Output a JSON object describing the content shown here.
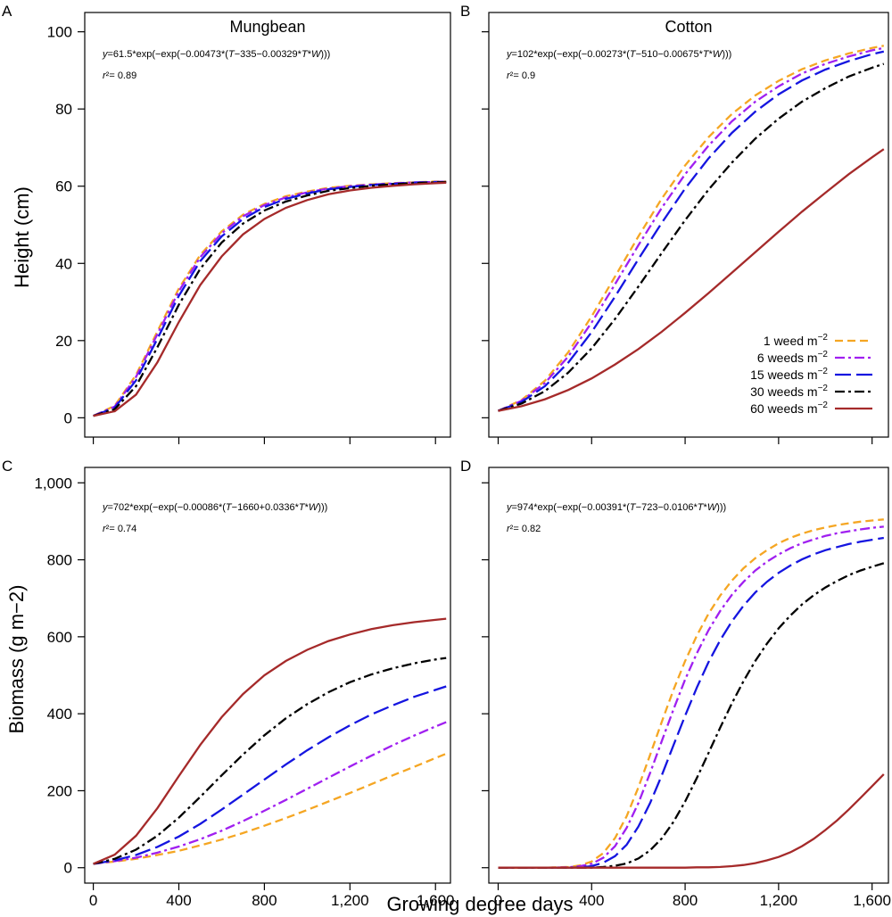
{
  "figure": {
    "x_axis_title": "Growing degree days",
    "y_axis_titles": {
      "height": "Height (cm)",
      "biomass": "Biomass  (g m−2)"
    }
  },
  "styles": {
    "1 weed m−2": {
      "color": "#F5A623",
      "dash": "9,5"
    },
    "6 weeds m−2": {
      "color": "#A020F0",
      "dash": "11,4,3,4"
    },
    "15 weeds m−2": {
      "color": "#1515E0",
      "dash": "18,6"
    },
    "30 weeds m−2": {
      "color": "#000000",
      "dash": "11,4,3,4"
    },
    "60 weeds m−2": {
      "color": "#A52A2A",
      "dash": ""
    }
  },
  "legend": {
    "panel": "B",
    "entries": [
      "1 weed m−2",
      "6 weeds m−2",
      "15 weeds m−2",
      "30 weeds m−2",
      "60 weeds m−2"
    ]
  },
  "chart_data": [
    {
      "type": "line",
      "panel": "A",
      "title": "Mungbean",
      "equation": "y=61.5*exp(−exp(−0.00473*(T−335−0.00329*T*W)))",
      "r2": "r²= 0.89",
      "ylabel": "Height (cm)",
      "xlim": [
        -40,
        1670
      ],
      "ylim": [
        -5,
        105
      ],
      "xticks": [
        0,
        400,
        800,
        1200,
        1600
      ],
      "xtick_labels": [
        "0",
        "400",
        "800",
        "1,200",
        "1,600"
      ],
      "yticks": [
        0,
        20,
        40,
        60,
        80,
        100
      ],
      "ytick_labels": [
        "0",
        "20",
        "40",
        "60",
        "80",
        "100"
      ],
      "x": [
        0,
        100,
        200,
        300,
        400,
        500,
        600,
        700,
        800,
        900,
        1000,
        1100,
        1200,
        1300,
        1400,
        1500,
        1600,
        1650
      ],
      "series": [
        {
          "name": "1 weed m−2",
          "values": [
            0.5,
            3.1,
            11.1,
            22.4,
            33.5,
            42.2,
            48.3,
            52.6,
            55.4,
            57.4,
            58.6,
            59.6,
            60.1,
            60.5,
            60.8,
            61.0,
            61.2,
            61.2
          ]
        },
        {
          "name": "6 weeds m−2",
          "values": [
            0.5,
            2.9,
            10.6,
            21.7,
            32.8,
            41.6,
            47.8,
            52.2,
            55.1,
            57.1,
            58.4,
            59.4,
            60.0,
            60.4,
            60.7,
            61.0,
            61.1,
            61.2
          ]
        },
        {
          "name": "15 weeds m−2",
          "values": [
            0.5,
            2.6,
            9.7,
            20.5,
            31.6,
            40.6,
            47.0,
            51.5,
            54.6,
            56.7,
            58.1,
            59.2,
            59.8,
            60.3,
            60.6,
            60.9,
            61.1,
            61.1
          ]
        },
        {
          "name": "30 weeds m−2",
          "values": [
            0.5,
            2.2,
            8.2,
            18.3,
            29.3,
            38.6,
            45.4,
            50.3,
            53.7,
            56.0,
            57.6,
            58.8,
            59.5,
            60.1,
            60.5,
            60.8,
            61.0,
            61.1
          ]
        },
        {
          "name": "60 weeds m−2",
          "values": [
            0.5,
            1.7,
            6.0,
            14.4,
            24.8,
            34.4,
            41.8,
            47.5,
            51.5,
            54.4,
            56.4,
            57.9,
            58.9,
            59.6,
            60.1,
            60.5,
            60.8,
            60.9
          ]
        }
      ]
    },
    {
      "type": "line",
      "panel": "B",
      "title": "Cotton",
      "equation": "y=102*exp(−exp(−0.00273*(T−510−0.00675*T*W)))",
      "r2": "r²= 0.9",
      "xlim": [
        -40,
        1670
      ],
      "ylim": [
        -5,
        105
      ],
      "xticks": [
        0,
        400,
        800,
        1200,
        1600
      ],
      "xtick_labels": [
        "0",
        "400",
        "800",
        "1,200",
        "1,600"
      ],
      "yticks": [
        0,
        20,
        40,
        60,
        80,
        100
      ],
      "x": [
        0,
        100,
        200,
        300,
        400,
        500,
        600,
        700,
        800,
        900,
        1000,
        1100,
        1200,
        1300,
        1400,
        1500,
        1600,
        1650
      ],
      "series": [
        {
          "name": "1 weed m−2",
          "values": [
            1.8,
            4.6,
            9.6,
            17.0,
            26.3,
            36.6,
            47.0,
            56.8,
            65.4,
            72.7,
            78.7,
            83.5,
            87.3,
            90.3,
            92.6,
            94.4,
            95.8,
            96.4
          ]
        },
        {
          "name": "6 weeds m−2",
          "values": [
            1.8,
            4.4,
            9.0,
            15.9,
            24.7,
            34.6,
            44.7,
            54.4,
            63.1,
            70.5,
            76.8,
            81.9,
            85.9,
            89.2,
            91.7,
            93.6,
            95.2,
            95.8
          ]
        },
        {
          "name": "15 weeds m−2",
          "values": [
            1.8,
            4.1,
            8.2,
            14.3,
            22.2,
            31.4,
            41.1,
            50.5,
            59.4,
            67.2,
            73.8,
            79.3,
            83.8,
            87.4,
            90.2,
            92.4,
            94.2,
            94.9
          ]
        },
        {
          "name": "30 weeds m−2",
          "values": [
            1.8,
            3.7,
            6.9,
            11.7,
            18.0,
            25.6,
            34.0,
            42.7,
            51.2,
            59.1,
            66.1,
            72.3,
            77.5,
            81.9,
            85.4,
            88.4,
            90.7,
            91.7
          ]
        },
        {
          "name": "60 weeds m−2",
          "values": [
            1.8,
            3.0,
            4.8,
            7.2,
            10.2,
            13.8,
            17.8,
            22.3,
            27.2,
            32.3,
            37.6,
            42.9,
            48.2,
            53.4,
            58.3,
            63.1,
            67.5,
            69.6
          ]
        }
      ]
    },
    {
      "type": "line",
      "panel": "C",
      "equation": "y=702*exp(−exp(−0.00086*(T−1660+0.0336*T*W)))",
      "r2": "r²= 0.74",
      "ylabel": "Biomass  (g m−2)",
      "xlim": [
        -40,
        1670
      ],
      "ylim": [
        -40,
        1040
      ],
      "xticks": [
        0,
        400,
        800,
        1200,
        1600
      ],
      "xtick_labels": [
        "0",
        "400",
        "800",
        "1,200",
        "1,600"
      ],
      "yticks": [
        0,
        200,
        400,
        600,
        800,
        1000
      ],
      "ytick_labels": [
        "0",
        "200",
        "400",
        "600",
        "800",
        "1,000"
      ],
      "x": [
        0,
        100,
        200,
        300,
        400,
        500,
        600,
        700,
        800,
        900,
        1000,
        1100,
        1200,
        1300,
        1400,
        1500,
        1600,
        1650
      ],
      "series": [
        {
          "name": "1 weed m−2",
          "values": [
            10,
            16,
            23,
            33,
            44,
            58,
            73,
            90,
            109,
            129,
            150,
            172,
            194,
            217,
            240,
            262,
            285,
            296
          ]
        },
        {
          "name": "6 weeds m−2",
          "values": [
            10,
            17,
            26,
            39,
            55,
            74,
            96,
            121,
            148,
            176,
            205,
            234,
            263,
            291,
            318,
            343,
            367,
            378
          ]
        },
        {
          "name": "15 weeds m−2",
          "values": [
            10,
            19,
            33,
            54,
            81,
            114,
            151,
            190,
            229,
            268,
            305,
            339,
            370,
            398,
            422,
            444,
            462,
            471
          ]
        },
        {
          "name": "30 weeds m−2",
          "values": [
            10,
            23,
            47,
            83,
            130,
            184,
            240,
            294,
            344,
            388,
            425,
            456,
            482,
            502,
            518,
            531,
            541,
            545
          ]
        },
        {
          "name": "60 weeds m−2",
          "values": [
            10,
            34,
            83,
            155,
            238,
            319,
            391,
            451,
            500,
            537,
            566,
            589,
            606,
            620,
            630,
            638,
            644,
            647
          ]
        }
      ]
    },
    {
      "type": "line",
      "panel": "D",
      "equation": "y=974*exp(−exp(−0.00391*(T−723−0.0106*T*W)))",
      "r2": "r²= 0.82",
      "xlim": [
        -40,
        1670
      ],
      "ylim": [
        -40,
        1040
      ],
      "xticks": [
        0,
        400,
        800,
        1200,
        1600
      ],
      "xtick_labels": [
        "0",
        "400",
        "800",
        "1,200",
        "1,600"
      ],
      "yticks": [
        0,
        200,
        400,
        600,
        800,
        1000
      ],
      "x": [
        0,
        100,
        200,
        300,
        350,
        400,
        450,
        500,
        550,
        600,
        650,
        700,
        750,
        800,
        850,
        900,
        950,
        1000,
        1050,
        1100,
        1150,
        1200,
        1250,
        1300,
        1350,
        1400,
        1450,
        1500,
        1550,
        1600,
        1650
      ],
      "series": [
        {
          "name": "1 weed m−2",
          "values": [
            0,
            0,
            0,
            2,
            6,
            16,
            38,
            77,
            134,
            209,
            293,
            379,
            462,
            537,
            603,
            660,
            707,
            746,
            778,
            804,
            825,
            843,
            857,
            868,
            877,
            884,
            890,
            895,
            899,
            902,
            905
          ]
        },
        {
          "name": "6 weeds m−2",
          "values": [
            0,
            0,
            0,
            1,
            4,
            10,
            26,
            56,
            104,
            168,
            246,
            329,
            411,
            489,
            557,
            617,
            667,
            709,
            743,
            772,
            795,
            814,
            830,
            843,
            853,
            862,
            869,
            874,
            879,
            883,
            886
          ]
        },
        {
          "name": "15 weeds m−2",
          "values": [
            0,
            0,
            0,
            0,
            1,
            4,
            13,
            30,
            60,
            107,
            168,
            240,
            318,
            395,
            468,
            534,
            591,
            640,
            681,
            715,
            743,
            766,
            785,
            801,
            814,
            825,
            833,
            841,
            847,
            852,
            857
          ]
        },
        {
          "name": "30 weeds m−2",
          "values": [
            0,
            0,
            0,
            0,
            0,
            0,
            2,
            5,
            11,
            24,
            45,
            76,
            119,
            172,
            233,
            298,
            364,
            427,
            485,
            537,
            582,
            622,
            655,
            684,
            708,
            728,
            745,
            760,
            772,
            782,
            791
          ]
        },
        {
          "name": "60 weeds m−2",
          "values": [
            0,
            0,
            0,
            0,
            0,
            0,
            0,
            0,
            0,
            0,
            0,
            0,
            0,
            0,
            1,
            1,
            2,
            4,
            7,
            12,
            19,
            28,
            40,
            56,
            75,
            98,
            123,
            151,
            181,
            212,
            243
          ]
        }
      ]
    }
  ]
}
